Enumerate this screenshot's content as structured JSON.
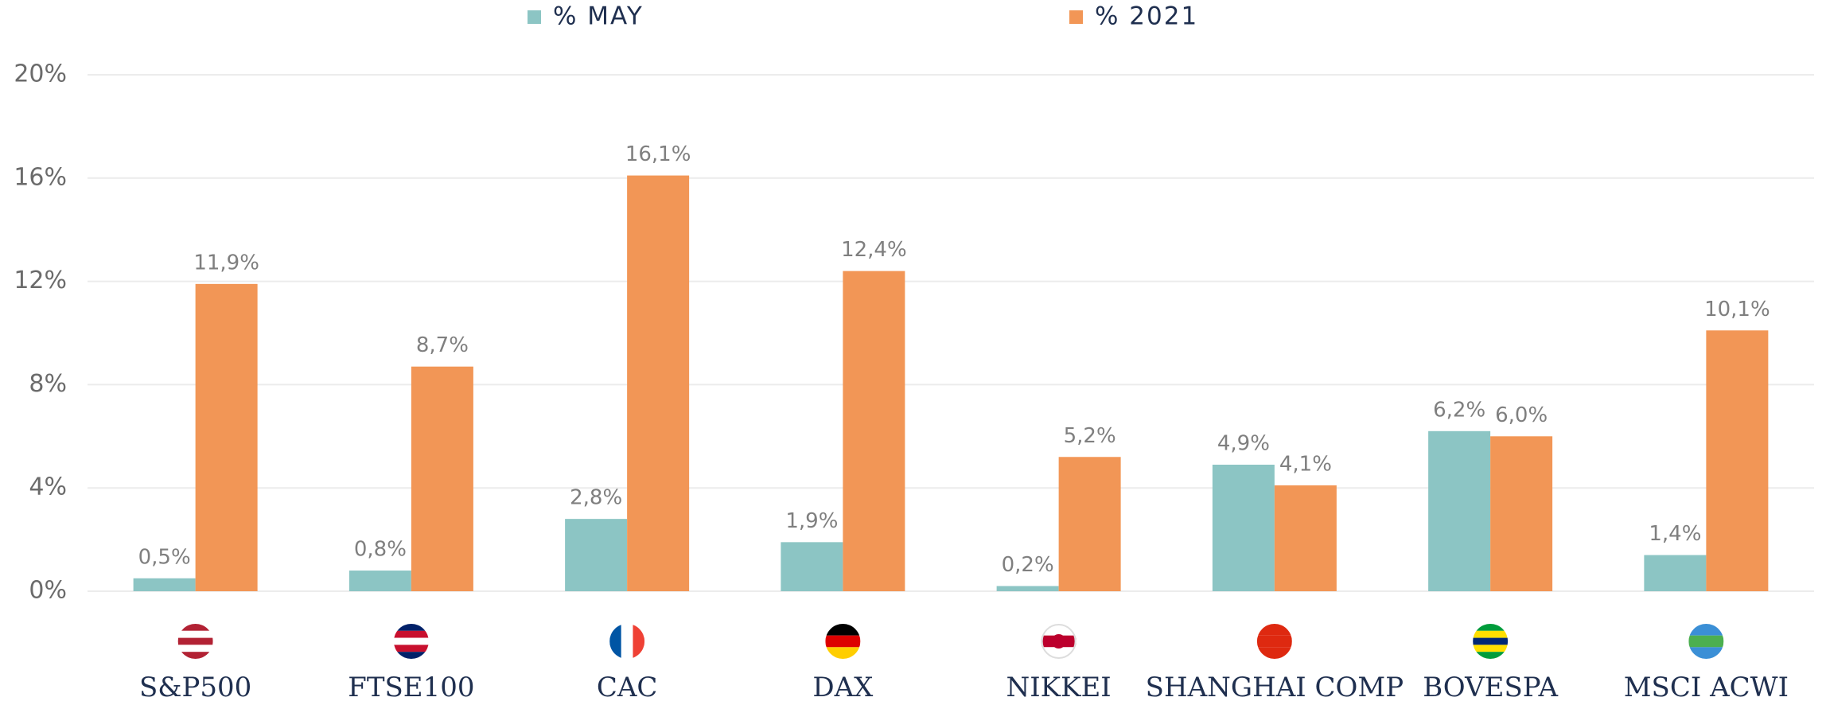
{
  "chart_data": {
    "type": "bar",
    "categories": [
      "S&P500",
      "FTSE100",
      "CAC",
      "DAX",
      "NIKKEI",
      "SHANGHAI COMP",
      "BOVESPA",
      "MSCI ACWI"
    ],
    "series": [
      {
        "name": "% MAY",
        "color": "#8cc5c4",
        "values": [
          0.5,
          0.8,
          2.8,
          1.9,
          0.2,
          4.9,
          6.2,
          1.4
        ],
        "value_labels": [
          "0,5%",
          "0,8%",
          "2,8%",
          "1,9%",
          "0,2%",
          "4,9%",
          "6,2%",
          "1,4%"
        ]
      },
      {
        "name": "% 2021",
        "color": "#f29656",
        "values": [
          11.9,
          8.7,
          16.1,
          12.4,
          5.2,
          4.1,
          6.0,
          10.1
        ],
        "value_labels": [
          "11,9%",
          "8,7%",
          "16,1%",
          "12,4%",
          "5,2%",
          "4,1%",
          "6,0%",
          "10,1%"
        ]
      }
    ],
    "ylim": [
      0,
      20
    ],
    "yticks": [
      {
        "value": 0,
        "label": "0%"
      },
      {
        "value": 4,
        "label": "4%"
      },
      {
        "value": 8,
        "label": "8%"
      },
      {
        "value": 12,
        "label": "12%"
      },
      {
        "value": 16,
        "label": "16%"
      },
      {
        "value": 20,
        "label": "20%"
      }
    ],
    "grid": true,
    "legend": "top"
  }
}
